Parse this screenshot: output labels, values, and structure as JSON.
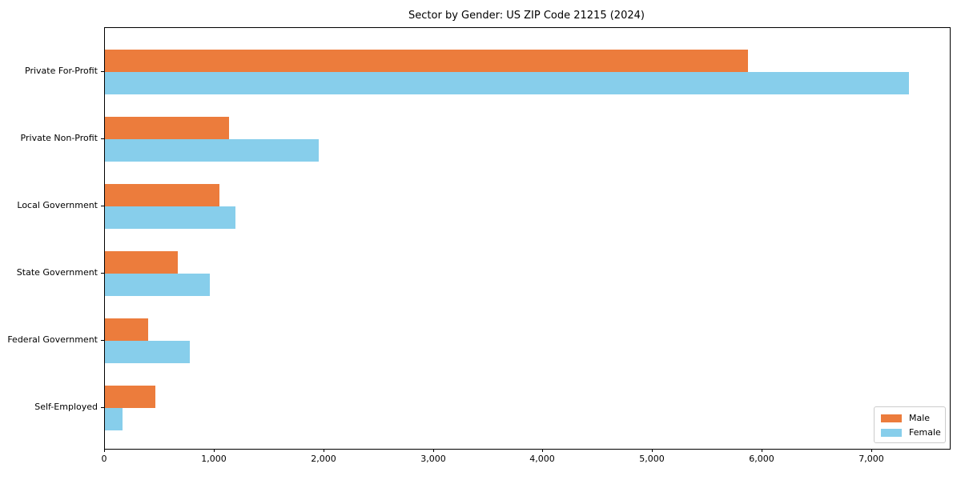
{
  "chart_data": {
    "type": "bar",
    "orientation": "horizontal",
    "title": "Sector by Gender: US ZIP Code 21215 (2024)",
    "categories": [
      "Private For-Profit",
      "Private Non-Profit",
      "Local Government",
      "State Government",
      "Federal Government",
      "Self-Employed"
    ],
    "series": [
      {
        "name": "Male",
        "color": "#ec7c3c",
        "values": [
          5870,
          1130,
          1045,
          665,
          395,
          460
        ]
      },
      {
        "name": "Female",
        "color": "#87ceeb",
        "values": [
          7340,
          1950,
          1190,
          960,
          775,
          160
        ]
      }
    ],
    "xlabel": "",
    "ylabel": "",
    "xlim": [
      0,
      7710
    ],
    "xticks": {
      "values": [
        0,
        1000,
        2000,
        3000,
        4000,
        5000,
        6000,
        7000
      ],
      "labels": [
        "0",
        "1,000",
        "2,000",
        "3,000",
        "4,000",
        "5,000",
        "6,000",
        "7,000"
      ]
    },
    "grid": false,
    "legend": {
      "position": "lower right",
      "entries": [
        "Male",
        "Female"
      ]
    }
  }
}
